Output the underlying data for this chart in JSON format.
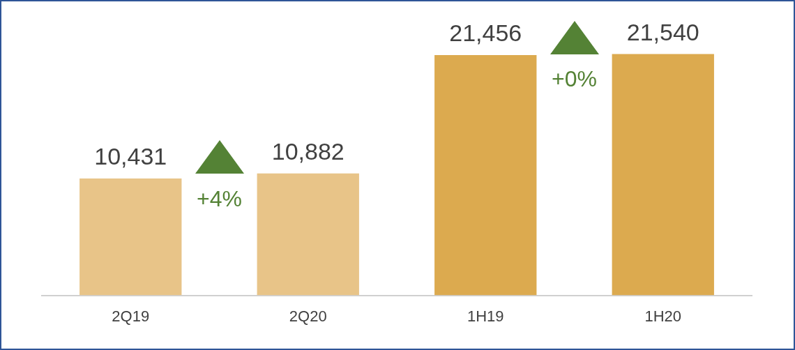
{
  "chart_data": {
    "type": "bar",
    "categories": [
      "2Q19",
      "2Q20",
      "1H19",
      "1H20"
    ],
    "values": [
      10431,
      10882,
      21456,
      21540
    ],
    "colors": [
      "#e8c488",
      "#e8c488",
      "#dcaa4f",
      "#dcaa4f"
    ],
    "value_labels": [
      "10,431",
      "10,882",
      "21,456",
      "21,540"
    ],
    "annotations": [
      "+4%",
      "+0%"
    ],
    "grid": false,
    "legend": false
  }
}
